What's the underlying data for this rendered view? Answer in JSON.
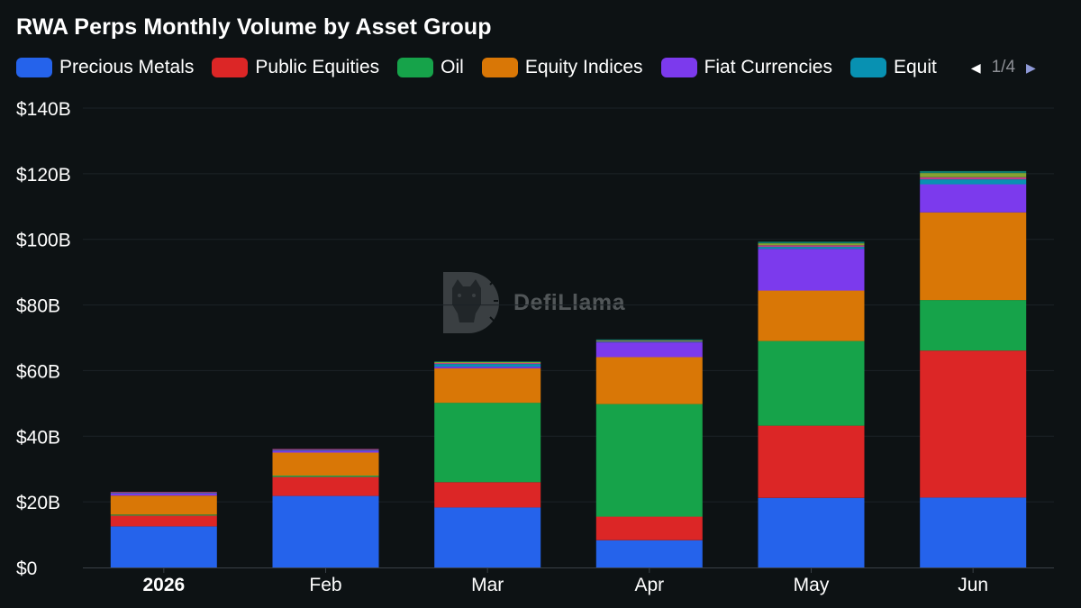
{
  "chart_data": {
    "type": "bar",
    "stacked": true,
    "title": "RWA Perps Monthly Volume by Asset Group",
    "categories": [
      "2026",
      "Feb",
      "Mar",
      "Apr",
      "May",
      "Jun"
    ],
    "y_ticks": [
      "$0",
      "$20B",
      "$40B",
      "$60B",
      "$80B",
      "$100B",
      "$120B",
      "$140B"
    ],
    "ylim": [
      0,
      140
    ],
    "y_unit": "billions USD",
    "grid": true,
    "legend_position": "top",
    "legend_page": "1/4",
    "series": [
      {
        "name": "Precious Metals",
        "color": "#2563eb",
        "values": [
          12.5,
          21.8,
          18.3,
          8.3,
          21.2,
          21.3
        ]
      },
      {
        "name": "Public Equities",
        "color": "#dc2626",
        "values": [
          3.3,
          5.8,
          7.7,
          7.2,
          22.0,
          44.8
        ]
      },
      {
        "name": "Oil",
        "color": "#16a34a",
        "values": [
          0.3,
          0.4,
          24.2,
          34.3,
          25.8,
          15.4
        ]
      },
      {
        "name": "Equity Indices",
        "color": "#d97706",
        "values": [
          5.8,
          7.0,
          10.5,
          14.3,
          15.4,
          26.7
        ]
      },
      {
        "name": "Fiat Currencies",
        "color": "#7c3aed",
        "values": [
          0.6,
          0.6,
          0.5,
          4.5,
          12.7,
          8.6
        ]
      },
      {
        "name": "Equit",
        "color": "#0891b2",
        "values": [
          0.2,
          0.2,
          0.8,
          0.2,
          0.6,
          1.5
        ]
      },
      {
        "name": "",
        "color": "#be3a8c",
        "values": [
          0.3,
          0.3,
          0.3,
          0.2,
          0.5,
          0.6
        ]
      },
      {
        "name": "",
        "color": "#84a332",
        "values": [
          0.0,
          0.0,
          0.3,
          0.2,
          0.6,
          1.3
        ]
      },
      {
        "name": "",
        "color": "#0f7a6b",
        "values": [
          0.0,
          0.0,
          0.2,
          0.3,
          0.5,
          0.6
        ]
      }
    ]
  },
  "legend": {
    "items": [
      "Precious Metals",
      "Public Equities",
      "Oil",
      "Equity Indices",
      "Fiat Currencies",
      "Equit"
    ],
    "page": "1/4",
    "prev_icon": "triangle-left",
    "next_icon": "triangle-right"
  },
  "watermark": {
    "text": "DefiLlama"
  },
  "colors": {
    "background": "#0d1214",
    "grid": "#1c2327",
    "text": "#ffffff"
  }
}
